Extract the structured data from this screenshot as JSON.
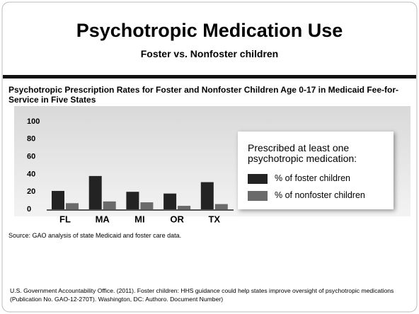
{
  "slide": {
    "title": "Psychotropic Medication Use",
    "subtitle": "Foster vs. Nonfoster children",
    "source": "Source: GAO analysis of state Medicaid and foster care data.",
    "citation": "U.S. Government Accountability Office. (2011). Foster children: HHS guidance could help states improve oversight of psychotropic medications (Publication No. GAO-12-270T). Washington, DC: Authoro. Document Number)"
  },
  "chart_data": {
    "type": "bar",
    "title": "Psychotropic Prescription Rates for Foster and Nonfoster Children Age 0-17 in Medicaid Fee-for-Service in Five States",
    "legend_title": "Prescribed at least one psychotropic medication:",
    "categories": [
      "FL",
      "MA",
      "MI",
      "OR",
      "TX"
    ],
    "series": [
      {
        "name": "% of foster children",
        "color": "#232323",
        "values": [
          21,
          38,
          20,
          18,
          31
        ]
      },
      {
        "name": "% of nonfoster children",
        "color": "#6a6a6a",
        "values": [
          7,
          9,
          8,
          4,
          6
        ]
      }
    ],
    "ylim": [
      0,
      100
    ],
    "yticks": [
      0,
      20,
      40,
      60,
      80,
      100
    ],
    "grid": false,
    "legend": "right"
  }
}
